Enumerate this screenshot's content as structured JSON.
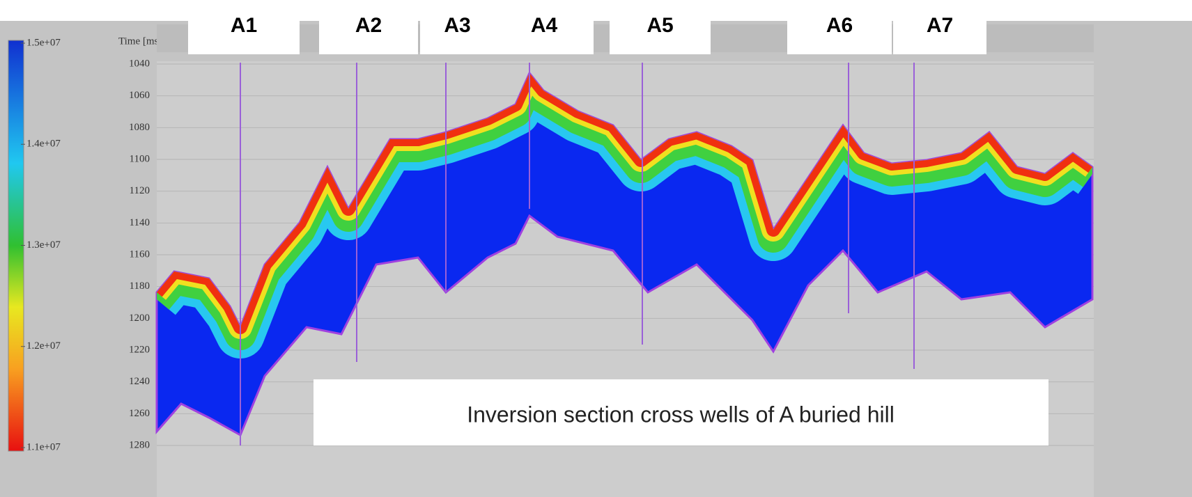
{
  "chart_data": {
    "type": "section",
    "title": "Inversion section cross wells of A buried hill",
    "y_label": "Time [ms]",
    "ylim": [
      1040,
      1280
    ],
    "yticks": [
      1040,
      1060,
      1080,
      1100,
      1120,
      1140,
      1160,
      1180,
      1200,
      1220,
      1240,
      1260,
      1280
    ],
    "clim": [
      11000000,
      15000000
    ],
    "cticks": [
      {
        "value": 15000000,
        "label": "1.5e+07"
      },
      {
        "value": 14000000,
        "label": "1.4e+07"
      },
      {
        "value": 13000000,
        "label": "1.3e+07"
      },
      {
        "value": 12000000,
        "label": "1.2e+07"
      },
      {
        "value": 11000000,
        "label": "1.1e+07"
      }
    ],
    "wells": [
      "A1",
      "A2",
      "A3",
      "A4",
      "A5",
      "A6",
      "A7"
    ],
    "grid": true
  }
}
